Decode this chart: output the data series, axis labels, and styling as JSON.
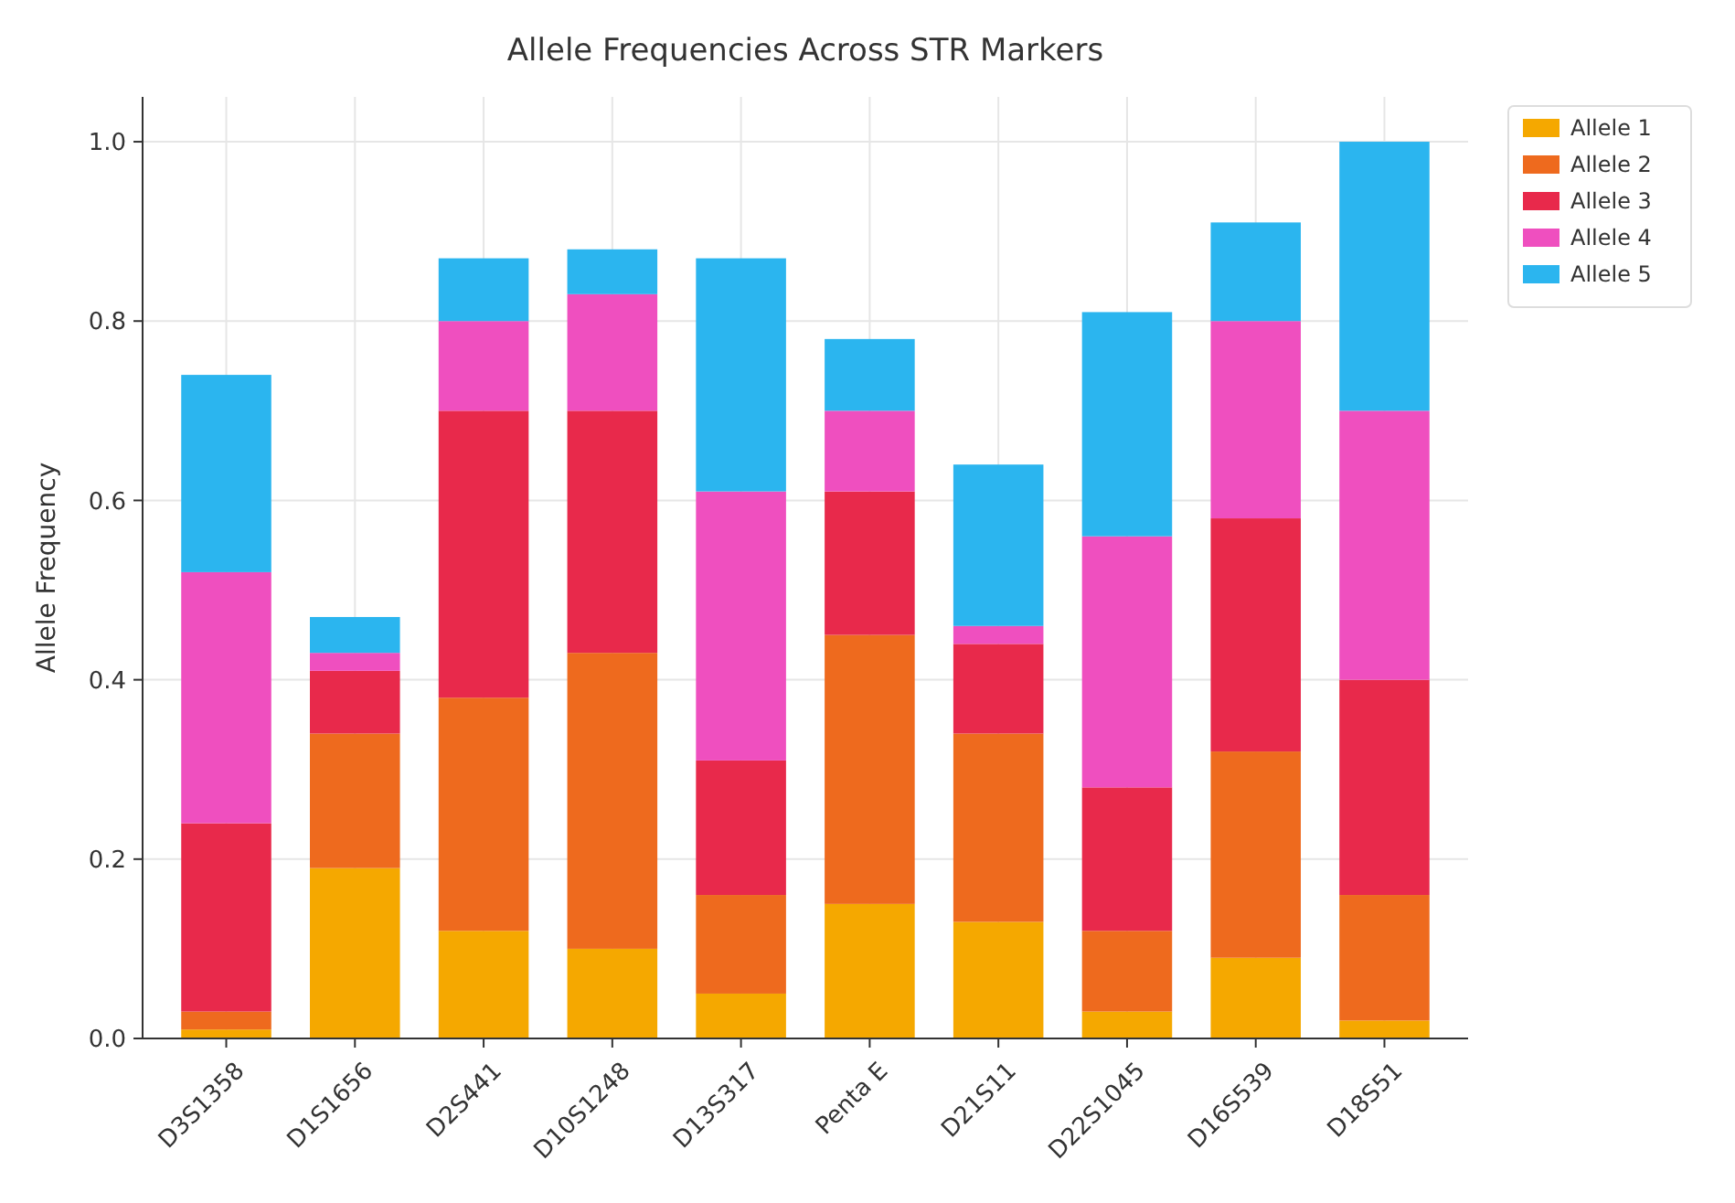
{
  "chart_data": {
    "type": "bar",
    "title": "Allele Frequencies Across STR Markers",
    "ylabel": "Allele Frequency",
    "stacked": true,
    "grid": true,
    "legend": "top right",
    "categories": [
      "D3S1358",
      "D1S1656",
      "D2S441",
      "D10S1248",
      "D13S317",
      "Penta E",
      "D21S11",
      "D22S1045",
      "D16S539",
      "D18S51"
    ],
    "ylim": [
      0,
      1.05
    ],
    "yticks": [
      {
        "value": 0,
        "label": "0.0"
      },
      {
        "value": 0.2,
        "label": "0.2"
      },
      {
        "value": 0.4,
        "label": "0.4"
      },
      {
        "value": 0.6,
        "label": "0.6"
      },
      {
        "value": 0.8,
        "label": "0.8"
      },
      {
        "value": 1,
        "label": "1.0"
      }
    ],
    "series": [
      {
        "name": "Allele 1",
        "color": "#f5a800",
        "values": [
          0.01,
          0.19,
          0.12,
          0.1,
          0.05,
          0.15,
          0.13,
          0.03,
          0.09,
          0.02
        ]
      },
      {
        "name": "Allele 2",
        "color": "#ee6a1e",
        "values": [
          0.02,
          0.15,
          0.26,
          0.33,
          0.11,
          0.3,
          0.21,
          0.09,
          0.23,
          0.14
        ]
      },
      {
        "name": "Allele 3",
        "color": "#e8294b",
        "values": [
          0.21,
          0.07,
          0.32,
          0.27,
          0.15,
          0.16,
          0.1,
          0.16,
          0.26,
          0.24
        ]
      },
      {
        "name": "Allele 4",
        "color": "#ef4fbf",
        "values": [
          0.28,
          0.02,
          0.1,
          0.13,
          0.3,
          0.09,
          0.02,
          0.28,
          0.22,
          0.3
        ]
      },
      {
        "name": "Allele 5",
        "color": "#2bb5ef",
        "values": [
          0.22,
          0.04,
          0.07,
          0.05,
          0.26,
          0.08,
          0.18,
          0.25,
          0.11,
          0.3
        ]
      }
    ]
  }
}
